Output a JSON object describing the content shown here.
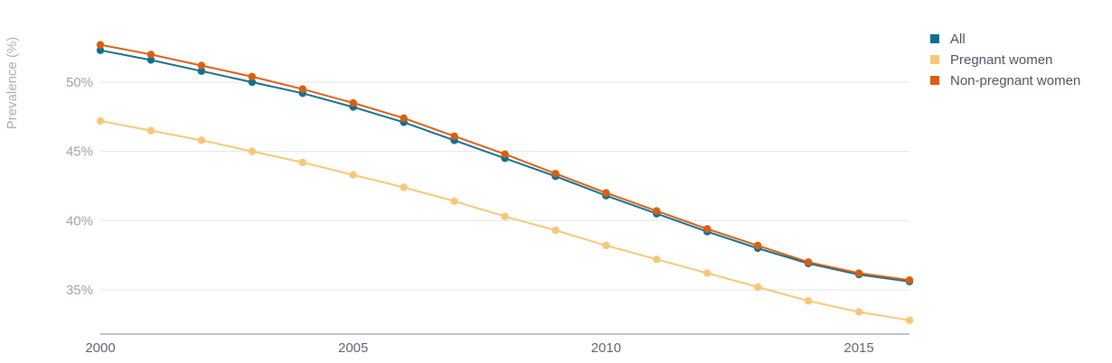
{
  "chart_data": {
    "type": "line",
    "ylabel": "Prevalence (%)",
    "xlabel": "",
    "x": [
      2000,
      2001,
      2002,
      2003,
      2004,
      2005,
      2006,
      2007,
      2008,
      2009,
      2010,
      2011,
      2012,
      2013,
      2014,
      2015,
      2016
    ],
    "xticks": [
      2000,
      2005,
      2010,
      2015
    ],
    "xtick_labels": [
      "2000",
      "2005",
      "2010",
      "2015"
    ],
    "yticks": [
      35,
      40,
      45,
      50
    ],
    "ytick_labels": [
      "35%",
      "40%",
      "45%",
      "50%"
    ],
    "xlim": [
      2000,
      2016
    ],
    "ylim": [
      31.8,
      54.5
    ],
    "grid": true,
    "legend_position": "top-right",
    "series": [
      {
        "name": "All",
        "color": "#136f8f",
        "values": [
          52.3,
          51.6,
          50.8,
          50.0,
          49.2,
          48.2,
          47.1,
          45.8,
          44.5,
          43.2,
          41.8,
          40.5,
          39.2,
          38.0,
          36.9,
          36.1,
          35.6
        ]
      },
      {
        "name": "Pregnant women",
        "color": "#f7c779",
        "values": [
          47.2,
          46.5,
          45.8,
          45.0,
          44.2,
          43.3,
          42.4,
          41.4,
          40.3,
          39.3,
          38.2,
          37.2,
          36.2,
          35.2,
          34.2,
          33.4,
          32.8
        ]
      },
      {
        "name": "Non-pregnant women",
        "color": "#d95f12",
        "values": [
          52.7,
          52.0,
          51.2,
          50.4,
          49.5,
          48.5,
          47.4,
          46.1,
          44.8,
          43.4,
          42.0,
          40.7,
          39.4,
          38.2,
          37.0,
          36.2,
          35.7
        ]
      }
    ]
  }
}
